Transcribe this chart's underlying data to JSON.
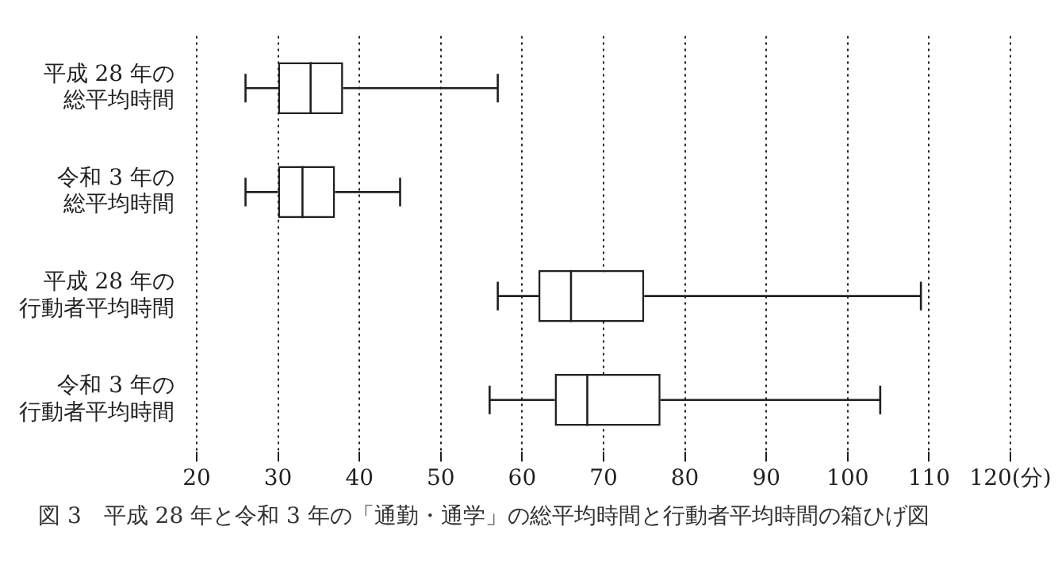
{
  "chart_data": {
    "type": "box",
    "orientation": "horizontal",
    "categories": [
      "平成 28 年の総平均時間",
      "令和 3 年の総平均時間",
      "平成 28 年の行動者平均時間",
      "令和 3 年の行動者平均時間"
    ],
    "boxes": [
      {
        "low": 26,
        "q1": 30,
        "median": 34,
        "q3": 38,
        "high": 57
      },
      {
        "low": 26,
        "q1": 30,
        "median": 33,
        "q3": 37,
        "high": 45
      },
      {
        "low": 57,
        "q1": 62,
        "median": 66,
        "q3": 75,
        "high": 109
      },
      {
        "low": 56,
        "q1": 64,
        "median": 68,
        "q3": 77,
        "high": 104
      }
    ],
    "xlim": [
      20,
      120
    ],
    "xticks": [
      20,
      30,
      40,
      50,
      60,
      70,
      80,
      90,
      100,
      110,
      {
        "value": 120,
        "label": "120(分)"
      }
    ],
    "grid": "x",
    "annotations": [
      "図 3　平成 28 年と令和 3 年の「通勤・通学」の総平均時間と行動者平均時間の箱ひげ図"
    ]
  }
}
